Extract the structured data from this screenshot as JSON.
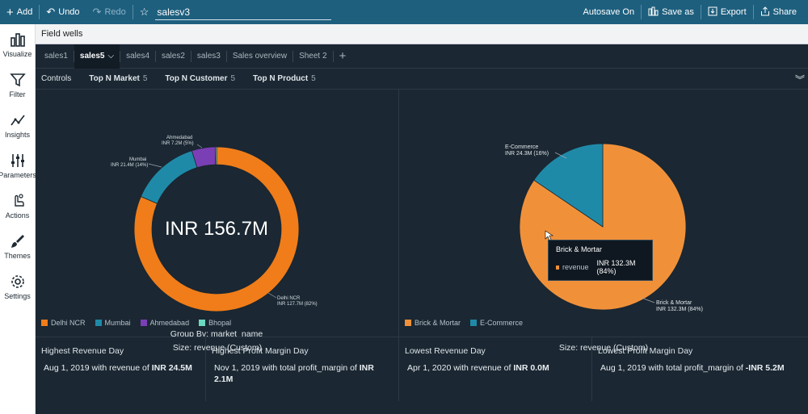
{
  "topbar": {
    "add_label": "Add",
    "undo_label": "Undo",
    "redo_label": "Redo",
    "title": "salesv3",
    "autosave": "Autosave On",
    "saveas": "Save as",
    "export": "Export",
    "share": "Share"
  },
  "sidebar": {
    "items": [
      {
        "label": "Visualize",
        "icon": "bar-chart-icon"
      },
      {
        "label": "Filter",
        "icon": "filter-icon"
      },
      {
        "label": "Insights",
        "icon": "insights-icon"
      },
      {
        "label": "Parameters",
        "icon": "parameters-icon"
      },
      {
        "label": "Actions",
        "icon": "actions-icon"
      },
      {
        "label": "Themes",
        "icon": "brush-icon"
      },
      {
        "label": "Settings",
        "icon": "gear-icon"
      }
    ]
  },
  "fieldwells": "Field wells",
  "tabs": [
    "sales1",
    "sales5",
    "sales4",
    "sales2",
    "sales3",
    "Sales overview",
    "Sheet 2"
  ],
  "controls": {
    "label": "Controls",
    "items": [
      {
        "name": "Top N Market",
        "value": "5"
      },
      {
        "name": "Top N Customer",
        "value": "5"
      },
      {
        "name": "Top N Product",
        "value": "5"
      }
    ]
  },
  "donut": {
    "center_label": "INR 156.7M",
    "group_by": "Group By: market_name",
    "size": "Size: revenue (Custom)",
    "labels": [
      {
        "name": "Delhi NCR",
        "value": "INR 127.7M (82%)"
      },
      {
        "name": "Mumbai",
        "value": "INR 21.4M (14%)"
      },
      {
        "name": "Ahmedabad",
        "value": "INR 7.2M (5%)"
      }
    ],
    "legend": [
      {
        "name": "Delhi NCR",
        "color": "#f07d19"
      },
      {
        "name": "Mumbai",
        "color": "#1f8aa8"
      },
      {
        "name": "Ahmedabad",
        "color": "#7b3fb5"
      },
      {
        "name": "Bhopal",
        "color": "#6bd8c0"
      }
    ]
  },
  "pie": {
    "size": "Size: revenue (Custom)",
    "labels": [
      {
        "name": "E-Commerce",
        "value": "INR 24.3M (16%)"
      },
      {
        "name": "Brick & Mortar",
        "value": "INR 132.3M (84%)"
      }
    ],
    "tooltip": {
      "title": "Brick & Mortar",
      "series": "revenue",
      "value": "INR 132.3M (84%)"
    },
    "legend": [
      {
        "name": "Brick & Mortar",
        "color": "#f0913a"
      },
      {
        "name": "E-Commerce",
        "color": "#1f8aa8"
      }
    ]
  },
  "chart_data": [
    {
      "type": "pie",
      "categories": [
        "Delhi NCR",
        "Mumbai",
        "Ahmedabad",
        "Bhopal"
      ],
      "values": [
        127.7,
        21.4,
        7.2,
        0.4
      ],
      "colors": [
        "#f07d19",
        "#1f8aa8",
        "#7b3fb5",
        "#6bd8c0"
      ],
      "donut": true,
      "center_label": "INR 156.7M"
    },
    {
      "type": "pie",
      "categories": [
        "Brick & Mortar",
        "E-Commerce"
      ],
      "values": [
        132.3,
        24.3
      ],
      "colors": [
        "#f0913a",
        "#1f8aa8"
      ]
    }
  ],
  "kpis": [
    {
      "title": "Highest Revenue Day",
      "text": "Aug 1, 2019 with revenue of ",
      "bold": "INR 24.5M"
    },
    {
      "title": "Highest Profit Margin Day",
      "text": "Nov 1, 2019 with total profit_margin of ",
      "bold": "INR 2.1M"
    },
    {
      "title": "Lowest Revenue Day",
      "text": "Apr 1, 2020 with revenue of ",
      "bold": "INR 0.0M"
    },
    {
      "title": "Lowest Profit Margin Day",
      "text": "Aug 1, 2019 with total profit_margin of ",
      "bold": "-INR 5.2M"
    }
  ]
}
